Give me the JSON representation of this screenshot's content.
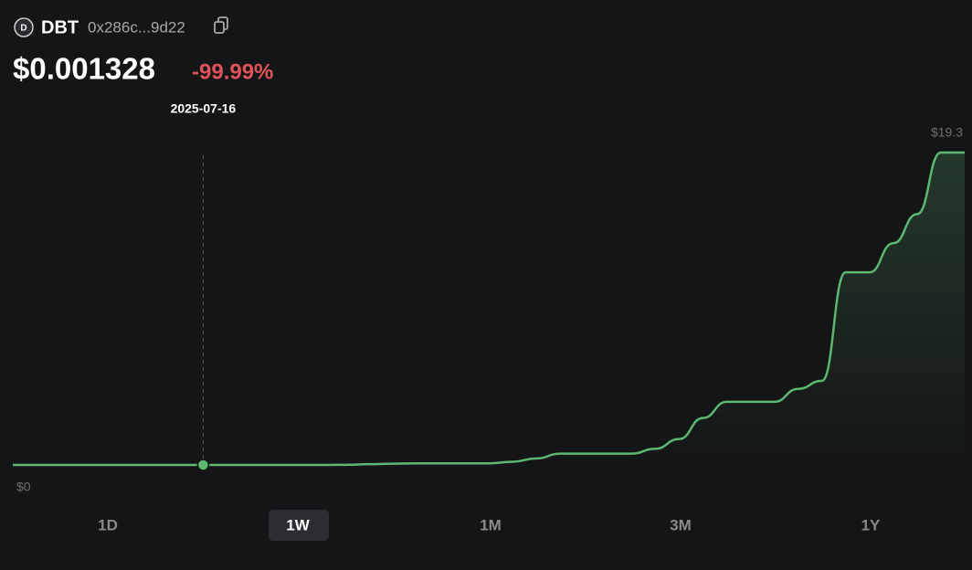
{
  "header": {
    "icon": "D",
    "symbol": "DBT",
    "address": "0x286c...9d22",
    "price": "$0.001328",
    "change": "-99.99%"
  },
  "chart_data": {
    "type": "line",
    "categories": [
      null,
      null,
      null,
      null,
      null,
      null,
      null,
      null,
      "2025-07-16",
      null,
      null,
      null,
      null,
      null,
      null,
      null,
      null,
      null,
      null,
      null,
      null,
      null,
      null,
      null,
      null,
      null,
      null,
      null,
      null,
      null,
      null,
      null,
      null,
      null,
      null,
      null,
      null,
      null,
      null,
      null,
      null
    ],
    "series": [
      {
        "name": "DBT",
        "color": "#5cb870",
        "values": [
          0,
          0,
          0,
          0,
          0,
          0,
          0,
          0,
          0,
          0,
          0,
          0,
          0,
          0,
          0.01,
          0.05,
          0.08,
          0.1,
          0.1,
          0.1,
          0.1,
          0.2,
          0.4,
          0.7,
          0.7,
          0.7,
          0.7,
          1.0,
          1.6,
          2.9,
          3.9,
          3.9,
          3.9,
          4.7,
          5.2,
          11.9,
          11.9,
          13.7,
          15.5,
          19.3,
          19.3
        ]
      }
    ],
    "ylim": [
      0,
      19.3
    ],
    "yticks": [
      {
        "value": 0,
        "label": "$0"
      },
      {
        "value": 19.3,
        "label": "$19.3"
      }
    ]
  },
  "ranges": {
    "items": [
      "1D",
      "1W",
      "1M",
      "3M",
      "1Y"
    ],
    "selected": "1W"
  }
}
